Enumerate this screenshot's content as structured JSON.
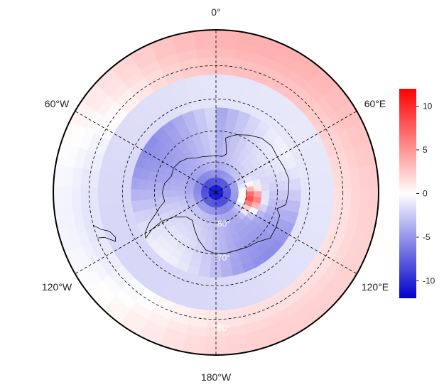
{
  "map": {
    "projection": "south-polar-stereographic",
    "longitude_labels": [
      {
        "lon": 0,
        "text": "0°"
      },
      {
        "lon": 60,
        "text": "60°E"
      },
      {
        "lon": 120,
        "text": "120°E"
      },
      {
        "lon": 180,
        "text": "180°W"
      },
      {
        "lon": -120,
        "text": "120°W"
      },
      {
        "lon": -60,
        "text": "60°W"
      }
    ],
    "latitude_circles": [
      {
        "lat": -80,
        "text": "-80°"
      },
      {
        "lat": -70,
        "text": "-70°"
      },
      {
        "lat": -60,
        "text": "-60°"
      },
      {
        "lat": -50,
        "text": ""
      }
    ],
    "outer_latitude": -40,
    "coastline": "Antarctica",
    "grid_style": "dashed"
  },
  "colorbar": {
    "range": [
      -12,
      12
    ],
    "ticks": [
      "10",
      "5",
      "0",
      "-5",
      "-10"
    ],
    "tick_values": [
      10,
      5,
      0,
      -5,
      -10
    ],
    "colors": {
      "low": "#0000cc",
      "mid": "#ffffff",
      "high": "#ff0000"
    }
  },
  "field": {
    "description_values": "anomaly field",
    "hotspot": {
      "lon": 80,
      "lat": -78,
      "value": 10
    },
    "pole_low": {
      "value": -11
    }
  }
}
